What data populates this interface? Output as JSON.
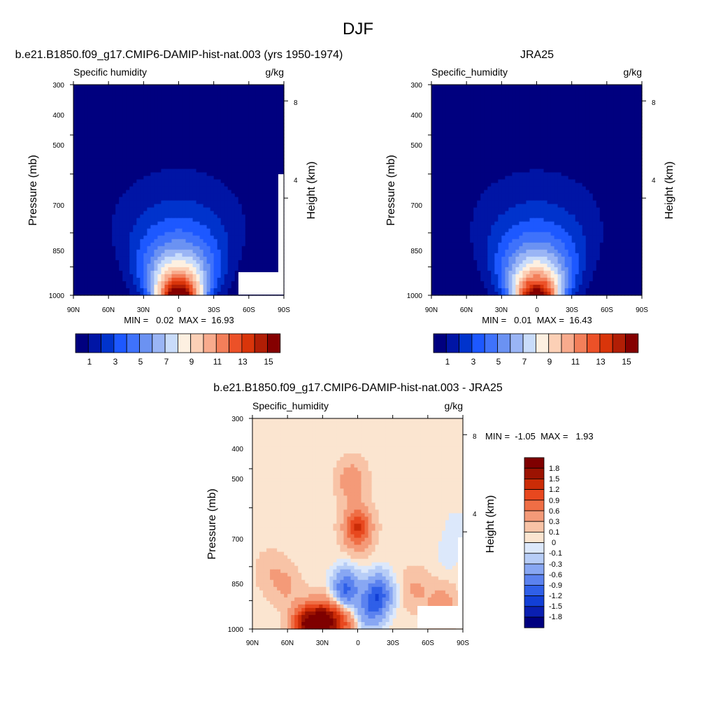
{
  "page_title": "DJF",
  "colors": {
    "seq_fill": [
      "#00007f",
      "#0015a5",
      "#0033cc",
      "#1d58ff",
      "#3f72fb",
      "#6b92f2",
      "#9ab5f5",
      "#c9dcfa",
      "#fdf0e1",
      "#fcd0b6",
      "#f8ab8d",
      "#f37f5a",
      "#ec5128",
      "#d9350a",
      "#b11e05",
      "#850000"
    ],
    "diff_fill": [
      "#00007f",
      "#0a1fb1",
      "#123fd6",
      "#2f5fe8",
      "#5b82ef",
      "#88a7f3",
      "#b7cdf7",
      "#dce8fb",
      "#fbe5d0",
      "#f8c3a6",
      "#f49a78",
      "#ef6e45",
      "#e8481f",
      "#cb2c07",
      "#9c1302",
      "#7f0000"
    ],
    "white_fill": "#ffffff"
  },
  "chart_data": [
    {
      "type": "heatmap",
      "title": "b.e21.B1850.f09_g17.CMIP6-DAMIP-hist-nat.003 (yrs 1950-1974)",
      "left_label": "Specific humidity",
      "right_label": "g/kg",
      "ylabel": "Pressure (mb)",
      "y2label": "Height (km)",
      "x_ticks": [
        "90N",
        "60N",
        "30N",
        "0",
        "30S",
        "60S",
        "90S"
      ],
      "x_values": [
        90,
        60,
        30,
        0,
        -30,
        -60,
        -90
      ],
      "xlim": [
        90,
        -90
      ],
      "y_ticks": [
        300,
        400,
        500,
        700,
        850,
        1000
      ],
      "ylim": [
        1000,
        300
      ],
      "y_scale": "log",
      "y2_ticks": [
        8,
        4
      ],
      "stats": "MIN =   0.02  MAX =  16.93",
      "min": 0.02,
      "max": 16.93,
      "levels": [
        1,
        2,
        3,
        4,
        5,
        6,
        7,
        8,
        9,
        10,
        11,
        12,
        13,
        14,
        15
      ],
      "colorbar_labels": [
        "1",
        "3",
        "5",
        "7",
        "9",
        "11",
        "13",
        "15"
      ],
      "colorbar_label_levels": [
        1,
        3,
        5,
        7,
        9,
        11,
        13,
        15
      ],
      "colorbar_orientation": "horizontal",
      "field": {
        "center_lat": 0,
        "peak": 16.93,
        "floor": 0.02,
        "surface_pressure": 1000
      }
    },
    {
      "type": "heatmap",
      "title": "JRA25",
      "left_label": "Specific_humidity",
      "right_label": "g/kg",
      "ylabel": "Pressure (mb)",
      "y2label": "Height (km)",
      "x_ticks": [
        "90N",
        "60N",
        "30N",
        "0",
        "30S",
        "60S",
        "90S"
      ],
      "x_values": [
        90,
        60,
        30,
        0,
        -30,
        -60,
        -90
      ],
      "xlim": [
        90,
        -90
      ],
      "y_ticks": [
        300,
        400,
        500,
        700,
        850,
        1000
      ],
      "ylim": [
        1000,
        300
      ],
      "y_scale": "log",
      "y2_ticks": [
        8,
        4
      ],
      "stats": "MIN =   0.01  MAX =  16.43",
      "min": 0.01,
      "max": 16.43,
      "levels": [
        1,
        2,
        3,
        4,
        5,
        6,
        7,
        8,
        9,
        10,
        11,
        12,
        13,
        14,
        15
      ],
      "colorbar_labels": [
        "1",
        "3",
        "5",
        "7",
        "9",
        "11",
        "13",
        "15"
      ],
      "colorbar_label_levels": [
        1,
        3,
        5,
        7,
        9,
        11,
        13,
        15
      ],
      "colorbar_orientation": "horizontal",
      "field": {
        "center_lat": 0,
        "peak": 16.43,
        "floor": 0.01,
        "surface_pressure": 1000
      }
    },
    {
      "type": "heatmap",
      "title": "b.e21.B1850.f09_g17.CMIP6-DAMIP-hist-nat.003 - JRA25",
      "left_label": "Specific_humidity",
      "right_label": "g/kg",
      "ylabel": "Pressure (mb)",
      "y2label": "Height (km)",
      "x_ticks": [
        "90N",
        "60N",
        "30N",
        "0",
        "30S",
        "60S",
        "90S"
      ],
      "x_values": [
        90,
        60,
        30,
        0,
        -30,
        -60,
        -90
      ],
      "xlim": [
        90,
        -90
      ],
      "y_ticks": [
        300,
        400,
        500,
        700,
        850,
        1000
      ],
      "ylim": [
        1000,
        300
      ],
      "y_scale": "log",
      "y2_ticks": [
        8,
        4
      ],
      "stats": "MIN =  -1.05  MAX =   1.93",
      "min": -1.05,
      "max": 1.93,
      "levels": [
        -1.8,
        -1.5,
        -1.2,
        -0.9,
        -0.6,
        -0.3,
        -0.1,
        0,
        0.1,
        0.3,
        0.6,
        0.9,
        1.2,
        1.5,
        1.8
      ],
      "colorbar_labels": [
        "1.8",
        "1.5",
        "1.2",
        "0.9",
        "0.6",
        "0.3",
        "0.1",
        "0",
        "-0.1",
        "-0.3",
        "-0.6",
        "-0.9",
        "-1.2",
        "-1.5",
        "-1.8"
      ],
      "colorbar_orientation": "vertical",
      "anomalies": [
        {
          "lat": 0,
          "p": 560,
          "value": 1.2
        },
        {
          "lat": 5,
          "p": 430,
          "value": 0.5
        },
        {
          "lat": 30,
          "p": 960,
          "value": 1.93
        },
        {
          "lat": 45,
          "p": 975,
          "value": 1.6
        },
        {
          "lat": 15,
          "p": 960,
          "value": 1.0
        },
        {
          "lat": 10,
          "p": 800,
          "value": -1.05
        },
        {
          "lat": -18,
          "p": 820,
          "value": -1.05
        },
        {
          "lat": -10,
          "p": 900,
          "value": -0.6
        },
        {
          "lat": 62,
          "p": 780,
          "value": 0.3
        },
        {
          "lat": 75,
          "p": 720,
          "value": 0.2
        },
        {
          "lat": -50,
          "p": 800,
          "value": 0.3
        },
        {
          "lat": -72,
          "p": 880,
          "value": 0.5
        },
        {
          "lat": -78,
          "p": 650,
          "value": -0.1
        },
        {
          "lat": -85,
          "p": 560,
          "value": -0.1
        }
      ]
    }
  ]
}
